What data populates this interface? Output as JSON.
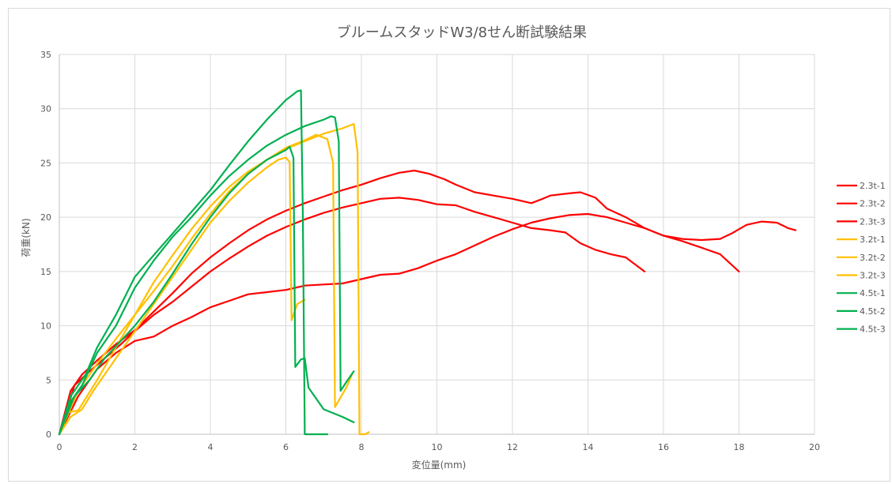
{
  "chart_data": {
    "type": "line",
    "title": "ブルームスタッドW3/8せん断試験結果",
    "xlabel": "変位量(mm)",
    "ylabel": "荷重(kN)",
    "xlim": [
      0,
      20
    ],
    "ylim": [
      0,
      35
    ],
    "xticks": [
      0,
      2,
      4,
      6,
      8,
      10,
      12,
      14,
      16,
      18,
      20
    ],
    "yticks": [
      0,
      5,
      10,
      15,
      20,
      25,
      30,
      35
    ],
    "grid": true,
    "legend_position": "right",
    "series": [
      {
        "name": "2.3t-1",
        "color": "#ff0000",
        "points": [
          [
            0,
            0
          ],
          [
            0.3,
            4
          ],
          [
            0.6,
            5.5
          ],
          [
            1,
            6.8
          ],
          [
            1.5,
            8.3
          ],
          [
            2,
            9.6
          ],
          [
            2.5,
            11.3
          ],
          [
            3,
            13
          ],
          [
            3.5,
            14.8
          ],
          [
            4,
            16.3
          ],
          [
            4.5,
            17.6
          ],
          [
            5,
            18.8
          ],
          [
            5.5,
            19.8
          ],
          [
            6,
            20.6
          ],
          [
            6.5,
            21.3
          ],
          [
            7,
            21.9
          ],
          [
            7.5,
            22.5
          ],
          [
            8,
            23
          ],
          [
            8.5,
            23.6
          ],
          [
            9,
            24.1
          ],
          [
            9.4,
            24.3
          ],
          [
            9.8,
            24
          ],
          [
            10.2,
            23.5
          ],
          [
            10.5,
            23
          ],
          [
            11,
            22.3
          ],
          [
            11.5,
            22
          ],
          [
            12,
            21.7
          ],
          [
            12.5,
            21.3
          ],
          [
            12.8,
            21.7
          ],
          [
            13,
            22
          ],
          [
            13.5,
            22.2
          ],
          [
            13.8,
            22.3
          ],
          [
            14.2,
            21.8
          ],
          [
            14.5,
            20.8
          ],
          [
            15,
            20
          ],
          [
            15.5,
            19
          ],
          [
            16,
            18.3
          ],
          [
            16.5,
            18
          ],
          [
            17,
            17.9
          ],
          [
            17.5,
            18
          ],
          [
            17.8,
            18.5
          ],
          [
            18.2,
            19.3
          ],
          [
            18.6,
            19.6
          ],
          [
            19,
            19.5
          ],
          [
            19.3,
            19
          ],
          [
            19.5,
            18.8
          ]
        ]
      },
      {
        "name": "2.3t-2",
        "color": "#ff0000",
        "points": [
          [
            0,
            0
          ],
          [
            0.4,
            4.5
          ],
          [
            0.8,
            5.8
          ],
          [
            1.2,
            7
          ],
          [
            1.6,
            8.2
          ],
          [
            2,
            9.5
          ],
          [
            2.5,
            11
          ],
          [
            3,
            12.2
          ],
          [
            3.5,
            13.6
          ],
          [
            4,
            15
          ],
          [
            4.5,
            16.2
          ],
          [
            5,
            17.3
          ],
          [
            5.5,
            18.3
          ],
          [
            6,
            19.1
          ],
          [
            6.5,
            19.8
          ],
          [
            7,
            20.4
          ],
          [
            7.5,
            20.9
          ],
          [
            8,
            21.3
          ],
          [
            8.5,
            21.7
          ],
          [
            9,
            21.8
          ],
          [
            9.5,
            21.6
          ],
          [
            10,
            21.2
          ],
          [
            10.5,
            21.1
          ],
          [
            11,
            20.5
          ],
          [
            11.5,
            20
          ],
          [
            12,
            19.5
          ],
          [
            12.5,
            19
          ],
          [
            13,
            18.8
          ],
          [
            13.4,
            18.6
          ],
          [
            13.8,
            17.6
          ],
          [
            14.2,
            17
          ],
          [
            14.6,
            16.6
          ],
          [
            15,
            16.3
          ],
          [
            15.5,
            15
          ]
        ]
      },
      {
        "name": "2.3t-3",
        "color": "#ff0000",
        "points": [
          [
            0,
            0
          ],
          [
            0.5,
            3.5
          ],
          [
            1,
            6
          ],
          [
            1.5,
            7.5
          ],
          [
            2,
            8.6
          ],
          [
            2.5,
            9
          ],
          [
            3,
            10
          ],
          [
            3.5,
            10.8
          ],
          [
            4,
            11.7
          ],
          [
            4.5,
            12.3
          ],
          [
            5,
            12.9
          ],
          [
            5.5,
            13.1
          ],
          [
            6,
            13.3
          ],
          [
            6.5,
            13.7
          ],
          [
            7,
            13.8
          ],
          [
            7.5,
            13.9
          ],
          [
            8,
            14.3
          ],
          [
            8.5,
            14.7
          ],
          [
            9,
            14.8
          ],
          [
            9.5,
            15.3
          ],
          [
            10,
            16
          ],
          [
            10.5,
            16.6
          ],
          [
            11,
            17.4
          ],
          [
            11.5,
            18.2
          ],
          [
            12,
            18.9
          ],
          [
            12.5,
            19.5
          ],
          [
            13,
            19.9
          ],
          [
            13.5,
            20.2
          ],
          [
            14,
            20.3
          ],
          [
            14.5,
            20
          ],
          [
            15,
            19.5
          ],
          [
            15.5,
            19
          ],
          [
            16,
            18.3
          ],
          [
            16.5,
            17.8
          ],
          [
            17,
            17.2
          ],
          [
            17.5,
            16.6
          ],
          [
            18,
            15
          ]
        ]
      },
      {
        "name": "3.2t-1",
        "color": "#ffc000",
        "points": [
          [
            0,
            0
          ],
          [
            0.3,
            1.6
          ],
          [
            0.6,
            2.3
          ],
          [
            0.9,
            4
          ],
          [
            1.2,
            5.5
          ],
          [
            1.6,
            7.5
          ],
          [
            2,
            9.5
          ],
          [
            2.5,
            12
          ],
          [
            3,
            14.5
          ],
          [
            3.5,
            17
          ],
          [
            4,
            19.5
          ],
          [
            4.5,
            21.5
          ],
          [
            5,
            23.2
          ],
          [
            5.5,
            24.6
          ],
          [
            5.8,
            25.3
          ],
          [
            6,
            25.5
          ],
          [
            6.1,
            25.1
          ],
          [
            6.15,
            10.5
          ],
          [
            6.3,
            12
          ],
          [
            6.5,
            12.4
          ]
        ]
      },
      {
        "name": "3.2t-2",
        "color": "#ffc000",
        "points": [
          [
            0,
            0
          ],
          [
            0.5,
            4
          ],
          [
            1,
            6.5
          ],
          [
            1.5,
            8.8
          ],
          [
            2,
            11
          ],
          [
            2.5,
            13.2
          ],
          [
            3,
            15.5
          ],
          [
            3.5,
            18
          ],
          [
            4,
            20.3
          ],
          [
            4.5,
            22.4
          ],
          [
            5,
            24
          ],
          [
            5.5,
            25.3
          ],
          [
            6,
            26.4
          ],
          [
            6.5,
            27.1
          ],
          [
            6.8,
            27.6
          ],
          [
            7.1,
            27.2
          ],
          [
            7.25,
            25
          ],
          [
            7.3,
            2.5
          ],
          [
            7.6,
            4.3
          ],
          [
            7.75,
            5.5
          ]
        ]
      },
      {
        "name": "3.2t-3",
        "color": "#ffc000",
        "points": [
          [
            0,
            0
          ],
          [
            0.2,
            2
          ],
          [
            0.5,
            2.2
          ],
          [
            1,
            5
          ],
          [
            1.5,
            8
          ],
          [
            2,
            11
          ],
          [
            2.5,
            14
          ],
          [
            3,
            16.5
          ],
          [
            3.5,
            18.9
          ],
          [
            4,
            21
          ],
          [
            4.5,
            22.8
          ],
          [
            5,
            24.2
          ],
          [
            5.5,
            25.3
          ],
          [
            6,
            26.3
          ],
          [
            6.5,
            27
          ],
          [
            7,
            27.7
          ],
          [
            7.5,
            28.2
          ],
          [
            7.8,
            28.6
          ],
          [
            7.9,
            26
          ],
          [
            7.95,
            0
          ],
          [
            8.1,
            0
          ],
          [
            8.2,
            0.2
          ]
        ]
      },
      {
        "name": "4.5t-1",
        "color": "#00b050",
        "points": [
          [
            0,
            0
          ],
          [
            0.4,
            3.5
          ],
          [
            0.8,
            5
          ],
          [
            1.2,
            7
          ],
          [
            1.6,
            8.5
          ],
          [
            2,
            10
          ],
          [
            2.5,
            12.2
          ],
          [
            3,
            14.8
          ],
          [
            3.5,
            17.5
          ],
          [
            4,
            20
          ],
          [
            4.5,
            22.2
          ],
          [
            5,
            24
          ],
          [
            5.5,
            25.3
          ],
          [
            6,
            26.2
          ],
          [
            6.1,
            26.5
          ],
          [
            6.2,
            25.5
          ],
          [
            6.25,
            6.2
          ],
          [
            6.4,
            6.9
          ],
          [
            6.5,
            7
          ],
          [
            6.6,
            4.3
          ],
          [
            7,
            2.3
          ],
          [
            7.5,
            1.6
          ],
          [
            7.8,
            1.1
          ]
        ]
      },
      {
        "name": "4.5t-2",
        "color": "#00b050",
        "points": [
          [
            0,
            0
          ],
          [
            0.3,
            3
          ],
          [
            0.6,
            4.5
          ],
          [
            1,
            7.5
          ],
          [
            1.5,
            10
          ],
          [
            2,
            13.5
          ],
          [
            2.5,
            16
          ],
          [
            3,
            18.2
          ],
          [
            3.5,
            20
          ],
          [
            4,
            22
          ],
          [
            4.5,
            23.8
          ],
          [
            5,
            25.3
          ],
          [
            5.5,
            26.6
          ],
          [
            6,
            27.6
          ],
          [
            6.5,
            28.4
          ],
          [
            7,
            29
          ],
          [
            7.2,
            29.3
          ],
          [
            7.3,
            29.2
          ],
          [
            7.4,
            27
          ],
          [
            7.45,
            4
          ],
          [
            7.6,
            4.8
          ],
          [
            7.8,
            5.8
          ]
        ]
      },
      {
        "name": "4.5t-3",
        "color": "#00b050",
        "points": [
          [
            0,
            0
          ],
          [
            0.3,
            3.5
          ],
          [
            0.7,
            5.5
          ],
          [
            1,
            8
          ],
          [
            1.5,
            11
          ],
          [
            2,
            14.5
          ],
          [
            2.5,
            16.5
          ],
          [
            3,
            18.5
          ],
          [
            3.5,
            20.5
          ],
          [
            4,
            22.5
          ],
          [
            4.5,
            24.8
          ],
          [
            5,
            27
          ],
          [
            5.5,
            29
          ],
          [
            6,
            30.8
          ],
          [
            6.3,
            31.6
          ],
          [
            6.4,
            31.7
          ],
          [
            6.45,
            20
          ],
          [
            6.5,
            0
          ],
          [
            7,
            0
          ],
          [
            7.1,
            0
          ]
        ]
      }
    ]
  }
}
